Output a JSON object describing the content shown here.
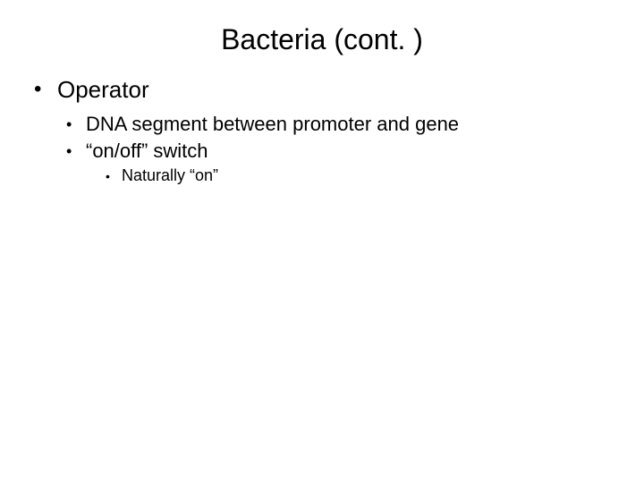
{
  "slide": {
    "title": "Bacteria (cont. )",
    "background_color": "#ffffff",
    "text_color": "#000000",
    "title_fontsize": 32,
    "font_family": "Arial",
    "bullets": {
      "lvl1_fontsize": 26,
      "lvl2_fontsize": 22,
      "lvl3_fontsize": 18,
      "items": [
        {
          "text": "Operator",
          "children": [
            {
              "text": "DNA segment between promoter and gene"
            },
            {
              "text": "“on/off” switch",
              "children": [
                {
                  "text": "Naturally “on”"
                }
              ]
            }
          ]
        }
      ]
    }
  }
}
